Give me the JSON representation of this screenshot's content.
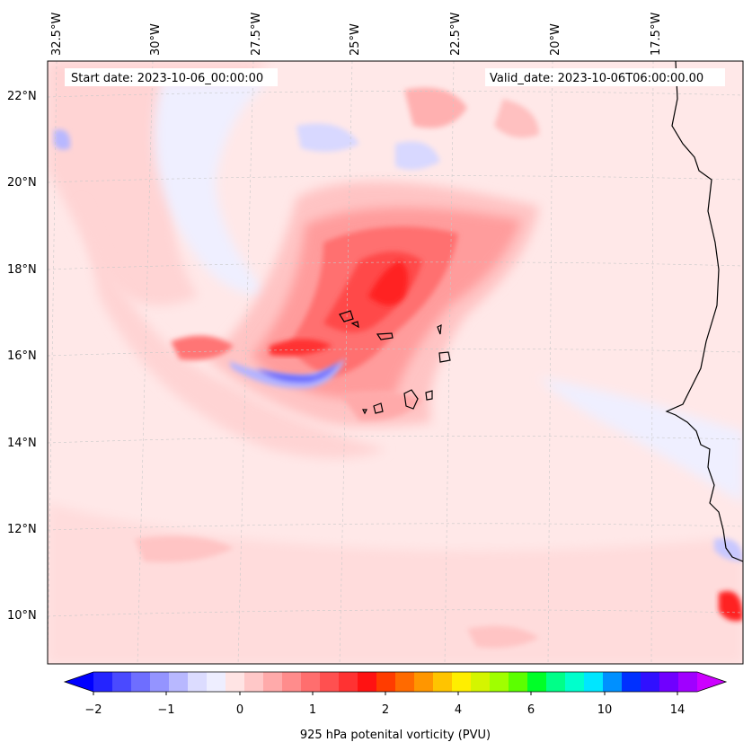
{
  "header": {
    "start_date_label": "Start date: 2023-10-06_00:00:00",
    "valid_date_label": "Valid_date: 2023-10-06T06:00:00.00"
  },
  "map": {
    "lon_labels": [
      "32.5°W",
      "30°W",
      "27.5°W",
      "25°W",
      "22.5°W",
      "20°W",
      "17.5°W"
    ],
    "lat_labels": [
      "22°N",
      "20°N",
      "18°N",
      "16°N",
      "14°N",
      "12°N",
      "10°N"
    ]
  },
  "colorbar": {
    "tick_labels": [
      "−2",
      "−1",
      "0",
      "1",
      "2",
      "4",
      "6",
      "10",
      "14"
    ],
    "label": "925 hPa potenital vorticity (PVU)",
    "colors": [
      "#0000ff",
      "#2424ff",
      "#4a4aff",
      "#6e6eff",
      "#9494ff",
      "#b8b8ff",
      "#dcdcff",
      "#eeeeff",
      "#ffe4e4",
      "#ffc8c8",
      "#ffaaaa",
      "#ff8c8c",
      "#ff6e6e",
      "#ff5050",
      "#ff3232",
      "#ff1212",
      "#ff3c00",
      "#ff6a00",
      "#ff9600",
      "#ffc400",
      "#ffee00",
      "#d4f500",
      "#a0ff00",
      "#5cff00",
      "#00ff28",
      "#00ff88",
      "#00ffcc",
      "#00e6ff",
      "#0090ff",
      "#0030ff",
      "#3010ff",
      "#7000ff",
      "#a000ff",
      "#cc00ff"
    ]
  },
  "colors": {
    "background_field": "#ffe8e8",
    "coastline": "#000000"
  }
}
